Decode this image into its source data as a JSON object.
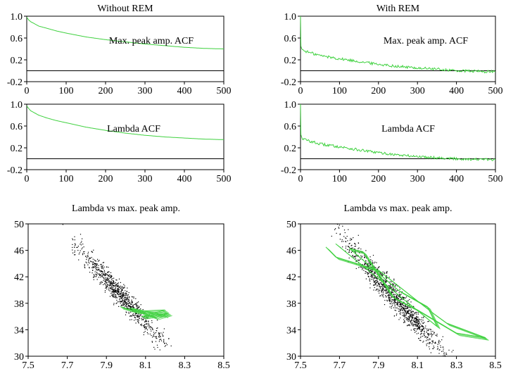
{
  "colors": {
    "series": "#3fd13f",
    "axis": "#000000",
    "points": "#000000"
  },
  "chart_data": [
    {
      "type": "line",
      "title": "Without REM",
      "annotation": "Max. peak amp. ACF",
      "xlim": [
        0,
        500
      ],
      "ylim": [
        -0.2,
        1.0
      ],
      "xticks": [
        "0",
        "100",
        "200",
        "300",
        "400",
        "500"
      ],
      "yticks": [
        "-0.2",
        "0.2",
        "0.6",
        "1.0"
      ],
      "zero_line": 0,
      "series": [
        {
          "x": [
            0,
            5,
            10,
            20,
            30,
            50,
            75,
            100,
            150,
            200,
            250,
            300,
            350,
            400,
            450,
            500
          ],
          "y": [
            0.98,
            0.93,
            0.9,
            0.86,
            0.82,
            0.78,
            0.73,
            0.69,
            0.62,
            0.57,
            0.53,
            0.49,
            0.46,
            0.43,
            0.41,
            0.4
          ]
        }
      ]
    },
    {
      "type": "line",
      "title": "With REM",
      "annotation": "Max. peak amp. ACF",
      "xlim": [
        0,
        500
      ],
      "ylim": [
        -0.2,
        1.0
      ],
      "xticks": [
        "0",
        "100",
        "200",
        "300",
        "400",
        "500"
      ],
      "yticks": [
        "-0.2",
        "0.2",
        "0.6",
        "1.0"
      ],
      "zero_line": 0,
      "series": [
        {
          "x": [
            0,
            1,
            5,
            20,
            50,
            100,
            150,
            200,
            250,
            300,
            350,
            400,
            450,
            500
          ],
          "y": [
            1.0,
            0.45,
            0.38,
            0.34,
            0.28,
            0.22,
            0.17,
            0.12,
            0.08,
            0.05,
            0.03,
            0.0,
            -0.01,
            -0.02
          ]
        }
      ]
    },
    {
      "type": "line",
      "title": "",
      "annotation": "Lambda ACF",
      "xlim": [
        0,
        500
      ],
      "ylim": [
        -0.2,
        1.0
      ],
      "xticks": [
        "0",
        "100",
        "200",
        "300",
        "400",
        "500"
      ],
      "yticks": [
        "-0.2",
        "0.2",
        "0.6",
        "1.0"
      ],
      "zero_line": 0,
      "series": [
        {
          "x": [
            0,
            5,
            10,
            20,
            30,
            50,
            75,
            100,
            150,
            200,
            250,
            300,
            350,
            400,
            450,
            500
          ],
          "y": [
            0.97,
            0.92,
            0.88,
            0.84,
            0.8,
            0.75,
            0.7,
            0.66,
            0.58,
            0.52,
            0.47,
            0.43,
            0.4,
            0.38,
            0.36,
            0.35
          ]
        }
      ]
    },
    {
      "type": "line",
      "title": "",
      "annotation": "Lambda ACF",
      "xlim": [
        0,
        500
      ],
      "ylim": [
        -0.2,
        1.0
      ],
      "xticks": [
        "0",
        "100",
        "200",
        "300",
        "400",
        "500"
      ],
      "yticks": [
        "-0.2",
        "0.2",
        "0.6",
        "1.0"
      ],
      "zero_line": 0,
      "series": [
        {
          "x": [
            0,
            1,
            5,
            20,
            50,
            100,
            150,
            200,
            250,
            300,
            350,
            400,
            450,
            500
          ],
          "y": [
            1.0,
            0.44,
            0.37,
            0.33,
            0.27,
            0.22,
            0.16,
            0.11,
            0.07,
            0.04,
            0.02,
            0.0,
            -0.01,
            -0.02
          ]
        }
      ]
    },
    {
      "type": "scatter",
      "title": "Lambda vs max. peak amp.",
      "xlim": [
        7.5,
        8.5
      ],
      "ylim": [
        30,
        50
      ],
      "xticks": [
        "7.5",
        "7.7",
        "7.9",
        "8.1",
        "8.3",
        "8.5"
      ],
      "yticks": [
        "30",
        "34",
        "38",
        "42",
        "46",
        "50"
      ],
      "cloud": {
        "center": [
          7.98,
          39.0
        ],
        "slope": -32,
        "x_range": [
          7.65,
          8.28
        ],
        "spread": 1.6,
        "n": 900
      },
      "series": [
        {
          "x": [
            7.97,
            8.05,
            8.2,
            8.08,
            8.22,
            8.15,
            8.02,
            8.2
          ],
          "y": [
            37.5,
            36.8,
            37.0,
            36.0,
            36.5,
            35.9,
            37.3,
            36.2
          ]
        }
      ]
    },
    {
      "type": "scatter",
      "title": "Lambda vs max. peak amp.",
      "xlim": [
        7.5,
        8.5
      ],
      "ylim": [
        30,
        50
      ],
      "xticks": [
        "7.5",
        "7.7",
        "7.9",
        "8.1",
        "8.3",
        "8.5"
      ],
      "yticks": [
        "30",
        "34",
        "38",
        "42",
        "46",
        "50"
      ],
      "cloud": {
        "center": [
          7.95,
          40.0
        ],
        "slope": -34,
        "x_range": [
          7.6,
          8.35
        ],
        "spread": 1.8,
        "n": 1200
      },
      "series": [
        {
          "x": [
            7.63,
            7.68,
            7.9,
            8.05,
            8.18,
            8.25,
            8.45,
            8.3,
            8.1,
            7.97,
            7.82,
            7.75,
            8.0,
            8.15,
            8.2,
            7.68
          ],
          "y": [
            46.5,
            45.0,
            43.0,
            39.5,
            36.5,
            35.0,
            32.8,
            33.5,
            37.0,
            39.0,
            45.8,
            46.3,
            40.0,
            37.5,
            34.5,
            47.0
          ]
        }
      ]
    }
  ]
}
